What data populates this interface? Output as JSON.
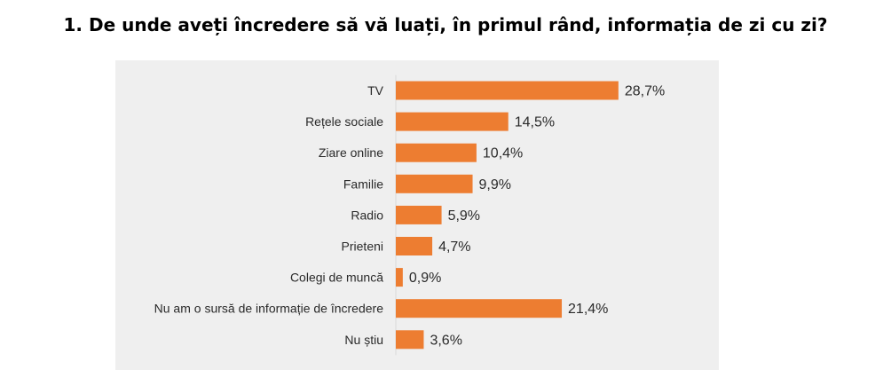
{
  "question": {
    "title": "1. De unde aveți încredere să vă luați, în primul rând, informația de zi cu zi?"
  },
  "chart_data": {
    "type": "bar",
    "orientation": "horizontal",
    "title": "",
    "xlabel": "",
    "ylabel": "",
    "grid": false,
    "legend": "none",
    "bar_color": "#ED7D31",
    "background_color": "#EFEFEF",
    "value_suffix": "%",
    "decimal_separator": ",",
    "xlim": [
      0,
      32
    ],
    "categories": [
      "TV",
      "Rețele sociale",
      "Ziare online",
      "Familie",
      "Radio",
      "Prieteni",
      "Colegi de muncă",
      "Nu am o sursă de informație de încredere",
      "Nu știu"
    ],
    "values": [
      28.7,
      14.5,
      10.4,
      9.9,
      5.9,
      4.7,
      0.9,
      21.4,
      3.6
    ],
    "value_labels": [
      "28,7%",
      "14,5%",
      "10,4%",
      "9,9%",
      "5,9%",
      "4,7%",
      "0,9%",
      "21,4%",
      "3,6%"
    ]
  }
}
